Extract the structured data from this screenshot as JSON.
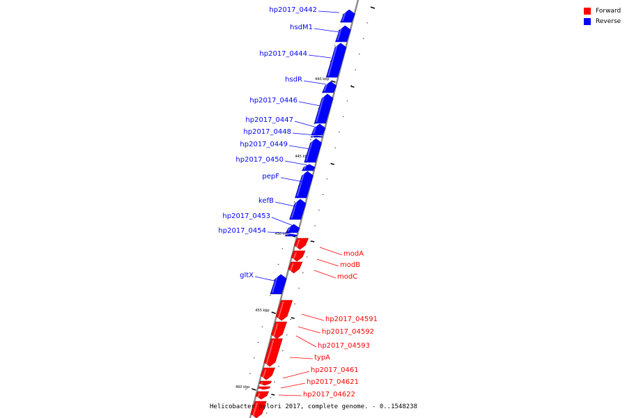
{
  "colors": {
    "forward": "#ff0000",
    "reverse": "#0000ff",
    "backbone": "#888888"
  },
  "legend": [
    {
      "label": "Forward",
      "color": "#ff0000"
    },
    {
      "label": "Reverse",
      "color": "#0000ff"
    }
  ],
  "caption": "Helicobacter pylori 2017, complete genome. - 0..1548238",
  "ticks": [
    {
      "label": "440 kbp"
    },
    {
      "label": "445 kbp"
    },
    {
      "label": "450 kbp"
    },
    {
      "label": "455 kbp"
    },
    {
      "label": "460 kbp"
    }
  ],
  "genes": [
    {
      "name": "hp2017_0442",
      "strand": "reverse"
    },
    {
      "name": "hsdM1",
      "strand": "reverse"
    },
    {
      "name": "hp2017_0444",
      "strand": "reverse"
    },
    {
      "name": "hsdR",
      "strand": "reverse"
    },
    {
      "name": "hp2017_0446",
      "strand": "reverse"
    },
    {
      "name": "hp2017_0447",
      "strand": "reverse"
    },
    {
      "name": "hp2017_0448",
      "strand": "reverse"
    },
    {
      "name": "hp2017_0449",
      "strand": "reverse"
    },
    {
      "name": "hp2017_0450",
      "strand": "reverse"
    },
    {
      "name": "pepF",
      "strand": "reverse"
    },
    {
      "name": "kefB",
      "strand": "reverse"
    },
    {
      "name": "hp2017_0453",
      "strand": "reverse"
    },
    {
      "name": "hp2017_0454",
      "strand": "reverse"
    },
    {
      "name": "modA",
      "strand": "forward"
    },
    {
      "name": "modB",
      "strand": "forward"
    },
    {
      "name": "modC",
      "strand": "forward"
    },
    {
      "name": "gltX",
      "strand": "reverse"
    },
    {
      "name": "hp2017_04591",
      "strand": "forward"
    },
    {
      "name": "hp2017_04592",
      "strand": "forward"
    },
    {
      "name": "hp2017_04593",
      "strand": "forward"
    },
    {
      "name": "typA",
      "strand": "forward"
    },
    {
      "name": "hp2017_0461",
      "strand": "forward"
    },
    {
      "name": "hp2017_04621",
      "strand": "forward"
    },
    {
      "name": "hp2017_04622",
      "strand": "forward"
    },
    {
      "name": "",
      "strand": "forward"
    }
  ]
}
